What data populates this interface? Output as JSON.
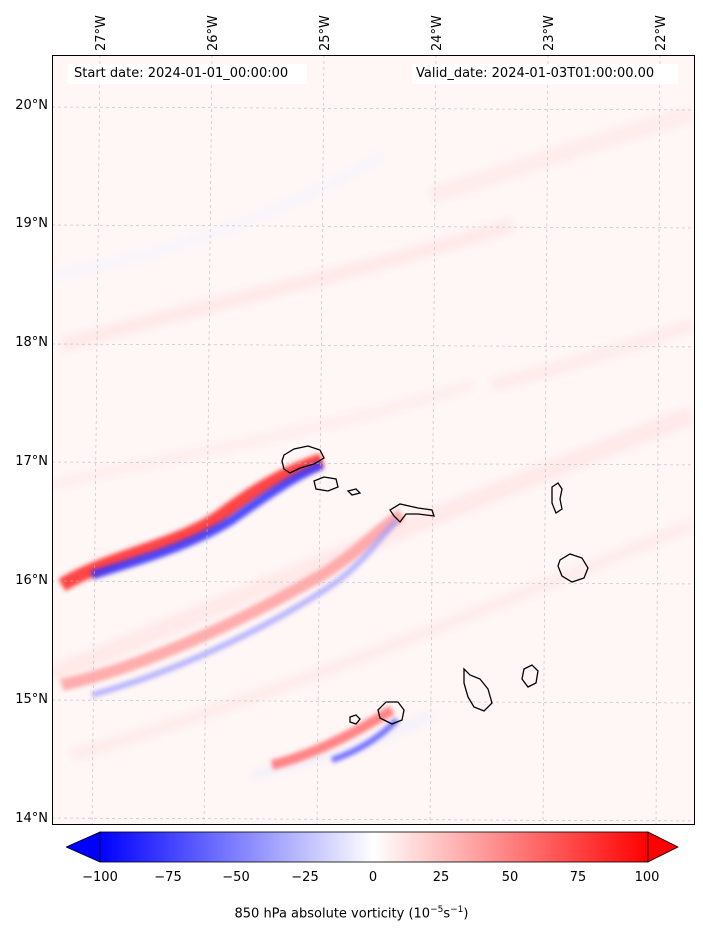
{
  "map": {
    "start_date": "Start date: 2024-01-01_00:00:00",
    "valid_date": "Valid_date: 2024-01-03T01:00:00.00",
    "lon_labels": [
      "27°W",
      "26°W",
      "25°W",
      "24°W",
      "23°W",
      "22°W"
    ],
    "lat_labels": [
      "20°N",
      "19°N",
      "18°N",
      "17°N",
      "16°N",
      "15°N",
      "14°N"
    ],
    "islands": [
      "Santo Antão",
      "São Vicente",
      "Santa Luzia",
      "São Nicolau",
      "Sal",
      "Boa Vista",
      "Fogo",
      "Brava",
      "Santiago",
      "Maio"
    ]
  },
  "colorbar": {
    "label": "850 hPa absolute vorticity (10",
    "label_exp1": "−5",
    "label_mid": "s",
    "label_exp2": "−1",
    "label_end": ")",
    "ticks": [
      "−100",
      "−75",
      "−50",
      "−25",
      "0",
      "25",
      "50",
      "75",
      "100"
    ],
    "min": -100,
    "max": 100,
    "low_color": "#0000ff",
    "mid_color": "#ffffff",
    "high_color": "#ff0000"
  }
}
